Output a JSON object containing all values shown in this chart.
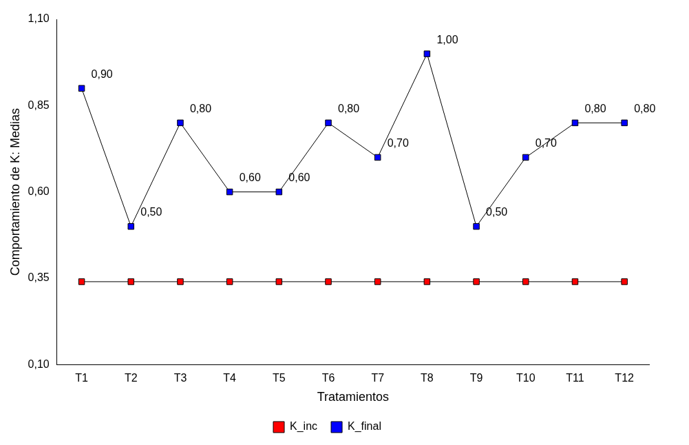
{
  "chart_data": {
    "type": "line",
    "xlabel": "Tratamientos",
    "ylabel": "Comportamiento de K: Medias",
    "categories": [
      "T1",
      "T2",
      "T3",
      "T4",
      "T5",
      "T6",
      "T7",
      "T8",
      "T9",
      "T10",
      "T11",
      "T12"
    ],
    "series": [
      {
        "name": "K_inc",
        "color": "#ff0000",
        "values": [
          0.34,
          0.34,
          0.34,
          0.34,
          0.34,
          0.34,
          0.34,
          0.34,
          0.34,
          0.34,
          0.34,
          0.34
        ]
      },
      {
        "name": "K_final",
        "color": "#0000ff",
        "values": [
          0.9,
          0.5,
          0.8,
          0.6,
          0.6,
          0.8,
          0.7,
          1.0,
          0.5,
          0.7,
          0.8,
          0.8
        ],
        "value_labels": [
          "0,90",
          "0,50",
          "0,80",
          "0,60",
          "0,60",
          "0,80",
          "0,70",
          "1,00",
          "0,50",
          "0,70",
          "0,80",
          "0,80"
        ]
      }
    ],
    "ylim": [
      0.1,
      1.1
    ],
    "yticks": [
      {
        "value": 0.1,
        "label": "0,10"
      },
      {
        "value": 0.35,
        "label": "0,35"
      },
      {
        "value": 0.6,
        "label": "0,60"
      },
      {
        "value": 0.85,
        "label": "0,85"
      },
      {
        "value": 1.1,
        "label": "1,10"
      }
    ],
    "grid": false,
    "legend": "bottom",
    "marker": "square",
    "line_style": "solid"
  }
}
